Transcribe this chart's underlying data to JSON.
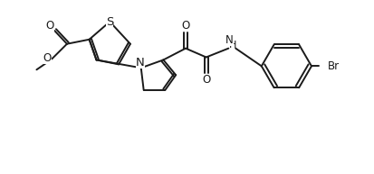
{
  "bg_color": "#ffffff",
  "line_color": "#1a1a1a",
  "line_width": 1.4,
  "font_size": 8.5,
  "figsize": [
    4.13,
    1.93
  ],
  "dpi": 100,
  "xlim": [
    0,
    413
  ],
  "ylim": [
    0,
    193
  ]
}
